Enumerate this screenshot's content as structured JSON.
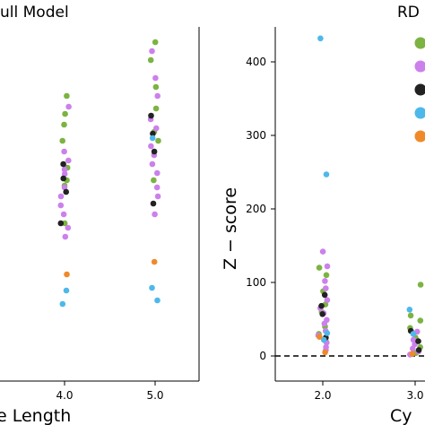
{
  "colors": {
    "green": "#7cb342",
    "violet": "#cc80ec",
    "black": "#222222",
    "blue": "#4fb8ea",
    "orange": "#f0892a"
  },
  "chart_data": [
    {
      "type": "scatter",
      "title": "ull Model",
      "xlabel": "e Length",
      "ylabel": "",
      "xticks": [
        "4.0",
        "5.0"
      ],
      "series": [
        {
          "color": "green",
          "points": [
            [
              4.0,
              312
            ],
            [
              4.0,
              292
            ],
            [
              4.0,
              280
            ],
            [
              4.0,
              262
            ],
            [
              4.0,
              232
            ],
            [
              4.0,
              218
            ],
            [
              4.0,
              212
            ],
            [
              4.0,
              170
            ],
            [
              5.0,
              372
            ],
            [
              5.0,
              352
            ],
            [
              5.0,
              322
            ],
            [
              5.0,
              298
            ],
            [
              5.0,
              272
            ],
            [
              5.0,
              262
            ],
            [
              5.0,
              218
            ]
          ]
        },
        {
          "color": "violet",
          "points": [
            [
              4.0,
              300
            ],
            [
              4.0,
              250
            ],
            [
              4.0,
              240
            ],
            [
              4.0,
              230
            ],
            [
              4.0,
              225
            ],
            [
              4.0,
              210
            ],
            [
              4.0,
              200
            ],
            [
              4.0,
              190
            ],
            [
              4.0,
              180
            ],
            [
              4.0,
              165
            ],
            [
              4.0,
              155
            ],
            [
              5.0,
              362
            ],
            [
              5.0,
              332
            ],
            [
              5.0,
              312
            ],
            [
              5.0,
              286
            ],
            [
              5.0,
              276
            ],
            [
              5.0,
              256
            ],
            [
              5.0,
              246
            ],
            [
              5.0,
              236
            ],
            [
              5.0,
              226
            ],
            [
              5.0,
              210
            ],
            [
              5.0,
              200
            ],
            [
              5.0,
              180
            ]
          ]
        },
        {
          "color": "black",
          "points": [
            [
              4.0,
              236
            ],
            [
              4.0,
              220
            ],
            [
              4.0,
              205
            ],
            [
              4.0,
              170
            ],
            [
              5.0,
              290
            ],
            [
              5.0,
              270
            ],
            [
              5.0,
              250
            ],
            [
              5.0,
              192
            ]
          ]
        },
        {
          "color": "blue",
          "points": [
            [
              4.0,
              95
            ],
            [
              4.0,
              80
            ],
            [
              5.0,
              265
            ],
            [
              5.0,
              98
            ],
            [
              5.0,
              84
            ]
          ]
        },
        {
          "color": "orange",
          "points": [
            [
              4.0,
              113
            ],
            [
              5.0,
              127
            ]
          ]
        }
      ]
    },
    {
      "type": "scatter",
      "title": "RD",
      "xlabel": "Cy",
      "ylabel": "Z − score",
      "ylim": [
        -30,
        460
      ],
      "yticks": [
        0,
        100,
        200,
        300,
        400
      ],
      "xticks": [
        "2.0",
        "3.0"
      ],
      "hline": 0,
      "legend": "top-right",
      "legend_colors": [
        "green",
        "violet",
        "black",
        "blue",
        "orange"
      ],
      "series": [
        {
          "color": "green",
          "points": [
            [
              2.0,
              120
            ],
            [
              2.0,
              110
            ],
            [
              2.0,
              88
            ],
            [
              2.0,
              70
            ],
            [
              2.0,
              60
            ],
            [
              2.0,
              40
            ],
            [
              2.0,
              30
            ],
            [
              2.0,
              20
            ],
            [
              3.0,
              97
            ],
            [
              3.0,
              55
            ],
            [
              3.0,
              48
            ],
            [
              3.0,
              38
            ],
            [
              3.0,
              25
            ],
            [
              3.0,
              12
            ],
            [
              3.0,
              4
            ]
          ]
        },
        {
          "color": "violet",
          "points": [
            [
              2.0,
              142
            ],
            [
              2.0,
              122
            ],
            [
              2.0,
              102
            ],
            [
              2.0,
              92
            ],
            [
              2.0,
              76
            ],
            [
              2.0,
              65
            ],
            [
              2.0,
              58
            ],
            [
              2.0,
              49
            ],
            [
              2.0,
              44
            ],
            [
              2.0,
              34
            ],
            [
              2.0,
              28
            ],
            [
              2.0,
              18
            ],
            [
              2.0,
              12
            ],
            [
              2.0,
              8
            ],
            [
              3.0,
              33
            ],
            [
              3.0,
              22
            ],
            [
              3.0,
              16
            ],
            [
              3.0,
              10
            ],
            [
              3.0,
              6
            ],
            [
              3.0,
              2
            ]
          ]
        },
        {
          "color": "black",
          "points": [
            [
              2.0,
              83
            ],
            [
              2.0,
              68
            ],
            [
              2.0,
              57
            ],
            [
              2.0,
              25
            ],
            [
              3.0,
              34
            ],
            [
              3.0,
              20
            ],
            [
              3.0,
              8
            ]
          ]
        },
        {
          "color": "blue",
          "points": [
            [
              2.0,
              432
            ],
            [
              2.0,
              247
            ],
            [
              2.0,
              31
            ],
            [
              2.0,
              22
            ],
            [
              3.0,
              63
            ],
            [
              3.0,
              30
            ]
          ]
        },
        {
          "color": "orange",
          "points": [
            [
              2.0,
              26
            ],
            [
              2.0,
              5
            ],
            [
              3.0,
              3
            ]
          ]
        }
      ]
    }
  ]
}
